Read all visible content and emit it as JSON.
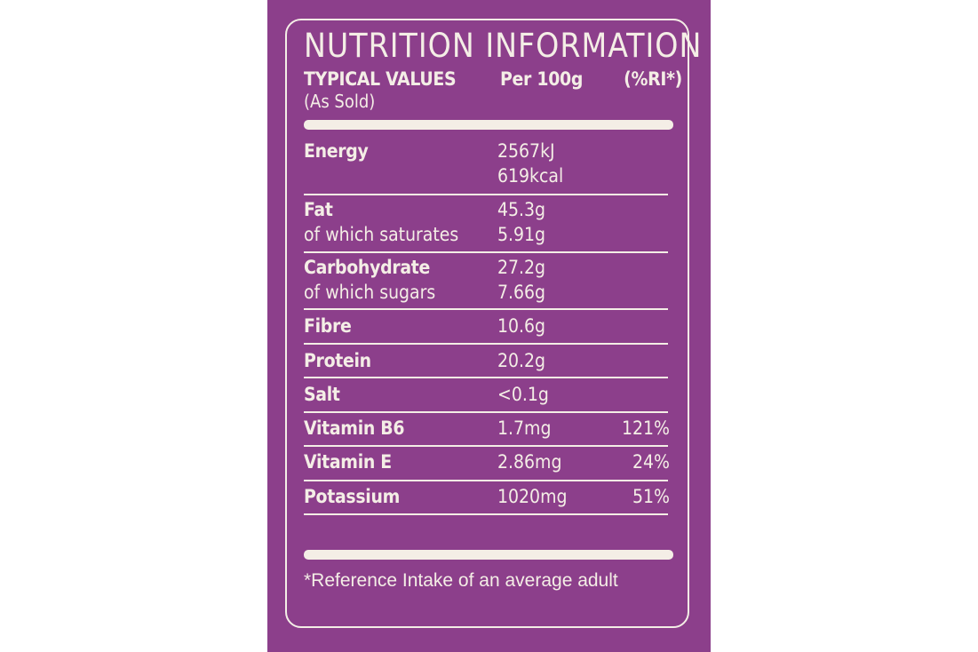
{
  "label": {
    "title": "NUTRITION INFORMATION",
    "header": {
      "typical_values": "TYPICAL VALUES",
      "as_sold": "(As Sold)",
      "per_100g": "Per 100g",
      "ri": "(%RI*)"
    },
    "rows": {
      "energy": {
        "name": "Energy",
        "value_kj": "2567kJ",
        "value_kcal": "619kcal"
      },
      "fat": {
        "name": "Fat",
        "value": "45.3g",
        "sub_name": "of which saturates",
        "sub_value": "5.91g"
      },
      "carbohydrate": {
        "name": "Carbohydrate",
        "value": "27.2g",
        "sub_name": "of which sugars",
        "sub_value": "7.66g"
      },
      "fibre": {
        "name": "Fibre",
        "value": "10.6g"
      },
      "protein": {
        "name": "Protein",
        "value": "20.2g"
      },
      "salt": {
        "name": "Salt",
        "value": "<0.1g"
      },
      "vitamin_b6": {
        "name": "Vitamin B6",
        "value": "1.7mg",
        "ri": "121%"
      },
      "vitamin_e": {
        "name": "Vitamin E",
        "value": "2.86mg",
        "ri": "24%"
      },
      "potassium": {
        "name": "Potassium",
        "value": "1020mg",
        "ri": "51%"
      }
    },
    "footnote": "*Reference Intake of an average adult"
  },
  "colors": {
    "panel_background": "#8c3f8b",
    "text_and_lines": "#f4eee6",
    "page_background": "#ffffff"
  }
}
